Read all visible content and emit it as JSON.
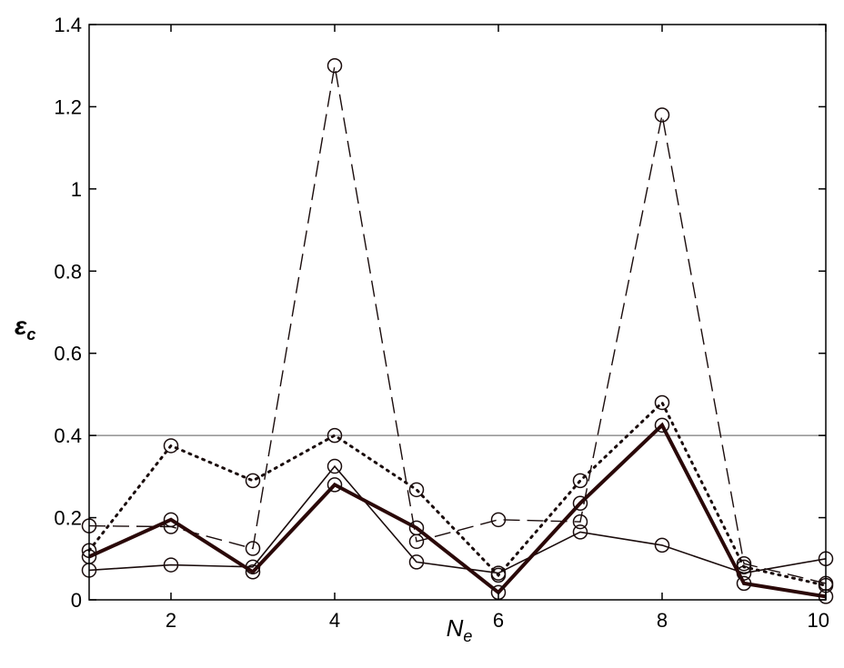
{
  "chart_data": {
    "type": "line",
    "title": "",
    "xlabel": {
      "main": "N",
      "sub": "e"
    },
    "ylabel": {
      "main": "ε",
      "sub": "c"
    },
    "xlim": [
      1,
      10
    ],
    "ylim": [
      0,
      1.4
    ],
    "xticks": [
      2,
      4,
      6,
      8,
      10
    ],
    "yticks": [
      0,
      0.2,
      0.4,
      0.6,
      0.8,
      1,
      1.2,
      1.4
    ],
    "ytick_labels": [
      "0",
      "0.2",
      "0.4",
      "0.6",
      "0.8",
      "1",
      "1.2",
      "1.4"
    ],
    "grid": false,
    "legend": "none",
    "reference_line": {
      "y": 0.4,
      "color": "#999999"
    },
    "x": [
      1,
      2,
      3,
      4,
      5,
      6,
      7,
      8,
      9,
      10
    ],
    "series": [
      {
        "style": "dashed",
        "color": "#1a0c0c",
        "marker": "circle",
        "values": [
          0.18,
          0.178,
          0.125,
          1.3,
          0.142,
          0.195,
          0.19,
          1.18,
          0.088,
          0.04
        ]
      },
      {
        "style": "dotted",
        "color": "#1a0c0c",
        "marker": "circle",
        "values": [
          0.12,
          0.375,
          0.29,
          0.4,
          0.268,
          0.06,
          0.29,
          0.48,
          0.08,
          0.035
        ]
      },
      {
        "style": "thin-solid",
        "color": "#1a0c0c",
        "marker": "circle",
        "values": [
          0.072,
          0.085,
          0.08,
          0.325,
          0.092,
          0.065,
          0.165,
          0.133,
          0.065,
          0.1
        ]
      },
      {
        "style": "thick-solid",
        "color": "#2a0808",
        "marker": "circle",
        "values": [
          0.105,
          0.195,
          0.068,
          0.28,
          0.175,
          0.018,
          0.235,
          0.425,
          0.04,
          0.008
        ]
      }
    ]
  }
}
